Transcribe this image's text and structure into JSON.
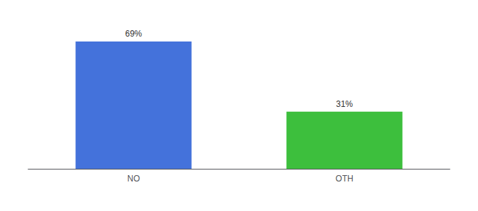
{
  "chart_data": {
    "type": "bar",
    "categories": [
      "NO",
      "OTH"
    ],
    "values": [
      69,
      31
    ],
    "value_labels": [
      "69%",
      "31%"
    ],
    "colors": [
      "#4472db",
      "#3dbf3d"
    ],
    "ylim": [
      0,
      80
    ],
    "data_labels": true,
    "tick_labels": "x",
    "grid": false
  }
}
